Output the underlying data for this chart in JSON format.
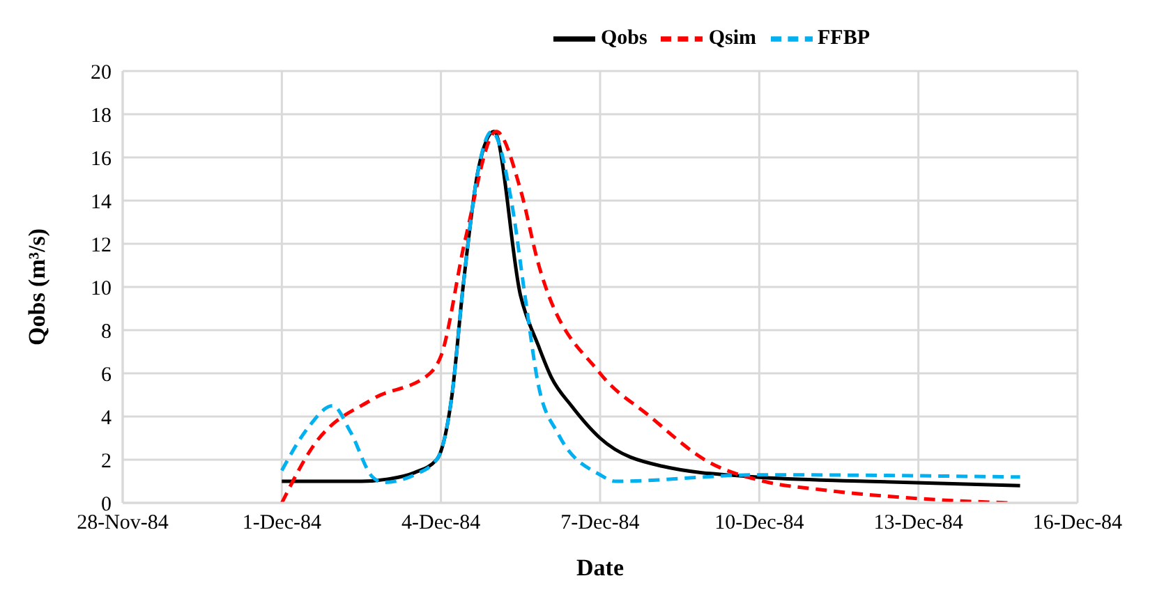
{
  "chart_data": {
    "type": "line",
    "xlabel": "Date",
    "ylabel": "Qobs (m³/s)",
    "xlim": [
      "1984-11-28",
      "1984-12-16"
    ],
    "xticks": [
      {
        "value": "1984-11-28",
        "label": "28-Nov-84"
      },
      {
        "value": "1984-12-01",
        "label": "1-Dec-84"
      },
      {
        "value": "1984-12-04",
        "label": "4-Dec-84"
      },
      {
        "value": "1984-12-07",
        "label": "7-Dec-84"
      },
      {
        "value": "1984-12-10",
        "label": "10-Dec-84"
      },
      {
        "value": "1984-12-13",
        "label": "13-Dec-84"
      },
      {
        "value": "1984-12-16",
        "label": "16-Dec-84"
      }
    ],
    "ylim": [
      0,
      20
    ],
    "yticks": [
      0,
      2,
      4,
      6,
      8,
      10,
      12,
      14,
      16,
      18,
      20
    ],
    "grid": true,
    "legend": "top",
    "marker": "none",
    "series": [
      {
        "name": "Qobs",
        "color": "#000000",
        "line_style": "solid",
        "x": [
          "1984-12-01T00:00",
          "1984-12-02T00:00",
          "1984-12-02T12:00",
          "1984-12-03T00:00",
          "1984-12-03T12:00",
          "1984-12-03T22:00",
          "1984-12-04T00:00",
          "1984-12-04T05:00",
          "1984-12-04T10:00",
          "1984-12-04T17:00",
          "1984-12-05T00:00",
          "1984-12-05T12:00",
          "1984-12-05T20:00",
          "1984-12-06T02:00",
          "1984-12-06T11:00",
          "1984-12-07T00:00",
          "1984-12-08T04:00",
          "1984-12-09T22:00",
          "1984-12-12T00:00",
          "1984-12-14T22:00"
        ],
        "values": [
          1.0,
          1.0,
          1.0,
          1.1,
          1.4,
          2.0,
          2.4,
          5.0,
          10.0,
          15.5,
          17.2,
          9.6,
          7.3,
          5.8,
          4.5,
          3.0,
          1.7,
          1.2,
          1.0,
          0.8
        ]
      },
      {
        "name": "Qsim",
        "color": "#ff0000",
        "line_style": "dashed",
        "x": [
          "1984-12-01T00:00",
          "1984-12-01T14:00",
          "1984-12-02T17:00",
          "1984-12-03T19:00",
          "1984-12-04T00:00",
          "1984-12-04T11:00",
          "1984-12-05T01:00",
          "1984-12-05T12:00",
          "1984-12-05T20:00",
          "1984-12-07T00:00",
          "1984-12-07T22:00",
          "1984-12-09T01:00",
          "1984-12-10T02:00",
          "1984-12-11T05:00",
          "1984-12-13T00:00",
          "1984-12-14T17:00"
        ],
        "values": [
          0.0,
          2.6,
          4.8,
          6.0,
          6.8,
          12.2,
          17.2,
          14.5,
          11.1,
          6.0,
          4.05,
          1.9,
          1.0,
          0.6,
          0.2,
          0.0
        ]
      },
      {
        "name": "FFBP",
        "color": "#00b0f0",
        "line_style": "dashed",
        "x": [
          "1984-12-01T00:00",
          "1984-12-01T12:00",
          "1984-12-01T23:00",
          "1984-12-02T07:00",
          "1984-12-02T17:00",
          "1984-12-02T22:00",
          "1984-12-03T12:00",
          "1984-12-03T22:00",
          "1984-12-04T00:00",
          "1984-12-04T05:00",
          "1984-12-04T10:00",
          "1984-12-04T17:00",
          "1984-12-04T23:00",
          "1984-12-05T08:00",
          "1984-12-05T14:00",
          "1984-12-05T20:00",
          "1984-12-06T05:00",
          "1984-12-07T00:00",
          "1984-12-07T07:00",
          "1984-12-10T00:00",
          "1984-12-14T22:00"
        ],
        "values": [
          1.5,
          3.5,
          4.5,
          3.3,
          1.2,
          0.95,
          1.3,
          2.0,
          2.4,
          5.0,
          10.0,
          15.5,
          17.2,
          13.9,
          9.6,
          5.5,
          3.2,
          1.3,
          1.0,
          1.3,
          1.2
        ]
      }
    ]
  }
}
